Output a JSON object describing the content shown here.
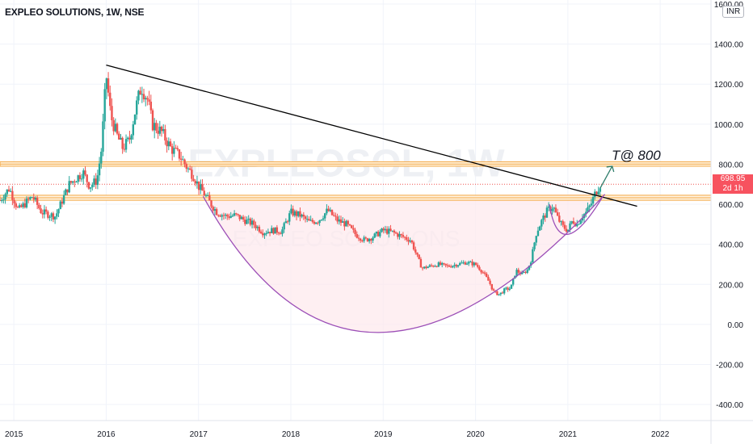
{
  "header": {
    "symbol_title": "EXPLEO SOLUTIONS, 1W, NSE"
  },
  "watermark": {
    "ticker": "EXPLEOSOL, 1W",
    "name": "EXPLEO SOLUTIONS"
  },
  "price_axis": {
    "currency": "INR"
  },
  "last_price": {
    "value": "698.95",
    "countdown": "2d 1h"
  },
  "annotation": {
    "target_text": "T@ 800"
  },
  "colors": {
    "up": "#26a69a",
    "down": "#ef5350",
    "zone": "#f4a640",
    "trendline": "#000000",
    "cup": "#9c4fb7",
    "cup_fill": "#fde8ec",
    "price_tag": "#f7525f"
  },
  "chart_data": {
    "type": "candlestick",
    "x_range": [
      2014.85,
      2022.55
    ],
    "y_range": [
      -480,
      1620
    ],
    "x_ticks": [
      {
        "value": 2015,
        "label": "2015"
      },
      {
        "value": 2016,
        "label": "2016"
      },
      {
        "value": 2017,
        "label": "2017"
      },
      {
        "value": 2018,
        "label": "2018"
      },
      {
        "value": 2019,
        "label": "2019"
      },
      {
        "value": 2020,
        "label": "2020"
      },
      {
        "value": 2021,
        "label": "2021"
      },
      {
        "value": 2022,
        "label": "2022"
      }
    ],
    "y_ticks": [
      {
        "value": 1600,
        "label": "1600.00"
      },
      {
        "value": 1400,
        "label": "1400.00"
      },
      {
        "value": 1200,
        "label": "1200.00"
      },
      {
        "value": 1000,
        "label": "1000.00"
      },
      {
        "value": 800,
        "label": "800.00"
      },
      {
        "value": 600,
        "label": "600.00"
      },
      {
        "value": 400,
        "label": "400.00"
      },
      {
        "value": 200,
        "label": "200.00"
      },
      {
        "value": 0,
        "label": "0.00"
      },
      {
        "value": -200,
        "label": "-200.00"
      },
      {
        "value": -400,
        "label": "-400.00"
      }
    ],
    "price_path": [
      [
        2014.85,
        620
      ],
      [
        2014.95,
        680
      ],
      [
        2015.05,
        570
      ],
      [
        2015.2,
        640
      ],
      [
        2015.3,
        560
      ],
      [
        2015.45,
        540
      ],
      [
        2015.6,
        700
      ],
      [
        2015.75,
        760
      ],
      [
        2015.82,
        690
      ],
      [
        2015.9,
        720
      ],
      [
        2015.95,
        880
      ],
      [
        2016.0,
        1250
      ],
      [
        2016.05,
        1040
      ],
      [
        2016.12,
        940
      ],
      [
        2016.18,
        880
      ],
      [
        2016.25,
        920
      ],
      [
        2016.32,
        1080
      ],
      [
        2016.38,
        1190
      ],
      [
        2016.45,
        1120
      ],
      [
        2016.5,
        1000
      ],
      [
        2016.6,
        960
      ],
      [
        2016.7,
        880
      ],
      [
        2016.8,
        840
      ],
      [
        2016.88,
        780
      ],
      [
        2016.95,
        740
      ],
      [
        2017.0,
        690
      ],
      [
        2017.05,
        660
      ],
      [
        2017.12,
        610
      ],
      [
        2017.2,
        560
      ],
      [
        2017.3,
        540
      ],
      [
        2017.4,
        545
      ],
      [
        2017.5,
        520
      ],
      [
        2017.6,
        500
      ],
      [
        2017.7,
        460
      ],
      [
        2017.8,
        470
      ],
      [
        2017.9,
        465
      ],
      [
        2018.0,
        560
      ],
      [
        2018.1,
        545
      ],
      [
        2018.2,
        510
      ],
      [
        2018.3,
        520
      ],
      [
        2018.4,
        570
      ],
      [
        2018.5,
        520
      ],
      [
        2018.6,
        500
      ],
      [
        2018.7,
        450
      ],
      [
        2018.8,
        420
      ],
      [
        2018.9,
        440
      ],
      [
        2019.0,
        470
      ],
      [
        2019.1,
        460
      ],
      [
        2019.2,
        440
      ],
      [
        2019.3,
        420
      ],
      [
        2019.35,
        360
      ],
      [
        2019.42,
        280
      ],
      [
        2019.5,
        290
      ],
      [
        2019.6,
        300
      ],
      [
        2019.7,
        290
      ],
      [
        2019.8,
        300
      ],
      [
        2019.9,
        310
      ],
      [
        2020.0,
        300
      ],
      [
        2020.08,
        260
      ],
      [
        2020.15,
        210
      ],
      [
        2020.2,
        160
      ],
      [
        2020.26,
        150
      ],
      [
        2020.32,
        175
      ],
      [
        2020.38,
        180
      ],
      [
        2020.44,
        270
      ],
      [
        2020.5,
        250
      ],
      [
        2020.56,
        270
      ],
      [
        2020.6,
        320
      ],
      [
        2020.66,
        460
      ],
      [
        2020.72,
        520
      ],
      [
        2020.78,
        570
      ],
      [
        2020.84,
        590
      ],
      [
        2020.88,
        540
      ],
      [
        2020.94,
        490
      ],
      [
        2021.0,
        470
      ],
      [
        2021.05,
        520
      ],
      [
        2021.1,
        500
      ],
      [
        2021.15,
        540
      ],
      [
        2021.2,
        560
      ],
      [
        2021.25,
        600
      ],
      [
        2021.3,
        660
      ],
      [
        2021.35,
        699
      ]
    ],
    "support_zones": [
      [
        790,
        812
      ],
      [
        620,
        645
      ]
    ],
    "resistance_level": 700,
    "trendline": [
      [
        2016.0,
        1295
      ],
      [
        2021.75,
        590
      ]
    ],
    "cup_curve": {
      "start": [
        2017.05,
        640
      ],
      "bottom": [
        2018.95,
        -40
      ],
      "end": [
        2021.4,
        650
      ]
    },
    "handle_curve": {
      "start": [
        2020.8,
        600
      ],
      "bottom": [
        2021.0,
        450
      ],
      "end": [
        2021.38,
        640
      ]
    },
    "target_arrow": {
      "from": [
        2021.35,
        680
      ],
      "to": [
        2021.48,
        790
      ]
    }
  }
}
